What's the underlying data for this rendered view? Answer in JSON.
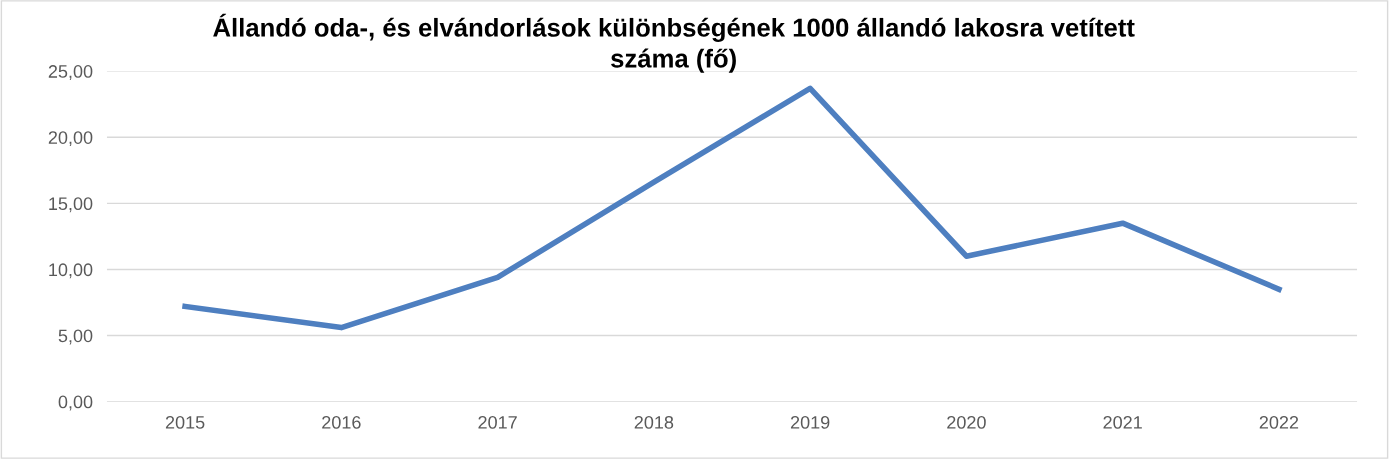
{
  "chart_data": {
    "type": "line",
    "title": "Állandó oda-, és elvándorlások különbségének 1000 állandó lakosra vetített\nszáma (fő)",
    "categories": [
      "2015",
      "2016",
      "2017",
      "2018",
      "2019",
      "2020",
      "2021",
      "2022"
    ],
    "series": [
      {
        "color": "#4e7fc0",
        "values": [
          7.2,
          5.6,
          9.4,
          16.6,
          23.7,
          11.0,
          13.5,
          8.5
        ]
      }
    ],
    "ylim": [
      0,
      25
    ],
    "yticks": [
      {
        "value": 0,
        "label": "0,00"
      },
      {
        "value": 5,
        "label": "5,00"
      },
      {
        "value": 10,
        "label": "10,00"
      },
      {
        "value": 15,
        "label": "15,00"
      },
      {
        "value": 20,
        "label": "20,00"
      },
      {
        "value": 25,
        "label": "25,00"
      }
    ],
    "grid": "y",
    "legend": false,
    "marker": "none",
    "line_style": "solid"
  }
}
